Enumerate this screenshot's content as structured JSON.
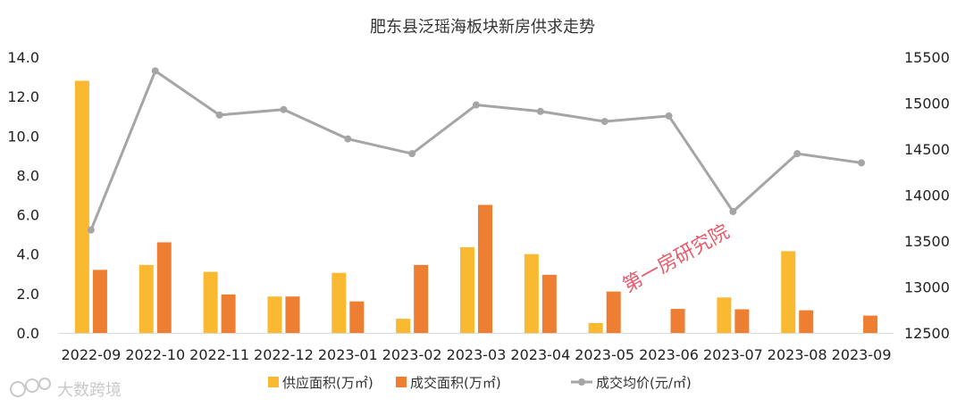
{
  "chart_data": {
    "type": "bar",
    "title": "肥东县泛瑶海板块新房供求走势",
    "categories": [
      "2022-09",
      "2022-10",
      "2022-11",
      "2022-12",
      "2023-01",
      "2023-02",
      "2023-03",
      "2023-04",
      "2023-05",
      "2023-06",
      "2023-07",
      "2023-08",
      "2023-09"
    ],
    "series": [
      {
        "name": "供应面积(万㎡)",
        "kind": "bar",
        "axis": "left",
        "color": "#F9B931",
        "values": [
          12.8,
          3.45,
          3.1,
          1.85,
          3.05,
          0.72,
          4.35,
          4.0,
          0.5,
          0,
          1.8,
          4.15,
          0
        ]
      },
      {
        "name": "成交面积(万㎡)",
        "kind": "bar",
        "axis": "left",
        "color": "#EE7E32",
        "values": [
          3.2,
          4.6,
          1.95,
          1.85,
          1.6,
          3.45,
          6.5,
          2.95,
          2.1,
          1.22,
          1.2,
          1.15,
          0.88
        ]
      },
      {
        "name": "成交均价(元/㎡)",
        "kind": "line",
        "axis": "right",
        "color": "#A5A5A5",
        "values": [
          13620,
          15350,
          14870,
          14930,
          14610,
          14450,
          14980,
          14910,
          14800,
          14860,
          13820,
          14450,
          14350
        ]
      }
    ],
    "y_left": {
      "range": [
        0,
        14
      ],
      "ticks": [
        "0.0",
        "2.0",
        "4.0",
        "6.0",
        "8.0",
        "10.0",
        "12.0",
        "14.0"
      ]
    },
    "y_right": {
      "range": [
        12500,
        15500
      ],
      "ticks": [
        "12500",
        "13000",
        "13500",
        "14000",
        "14500",
        "15000",
        "15500"
      ]
    },
    "grid": false,
    "legend_position": "bottom"
  },
  "watermarks": {
    "center": "第一房研究院",
    "bottom_left": "大数跨境"
  }
}
